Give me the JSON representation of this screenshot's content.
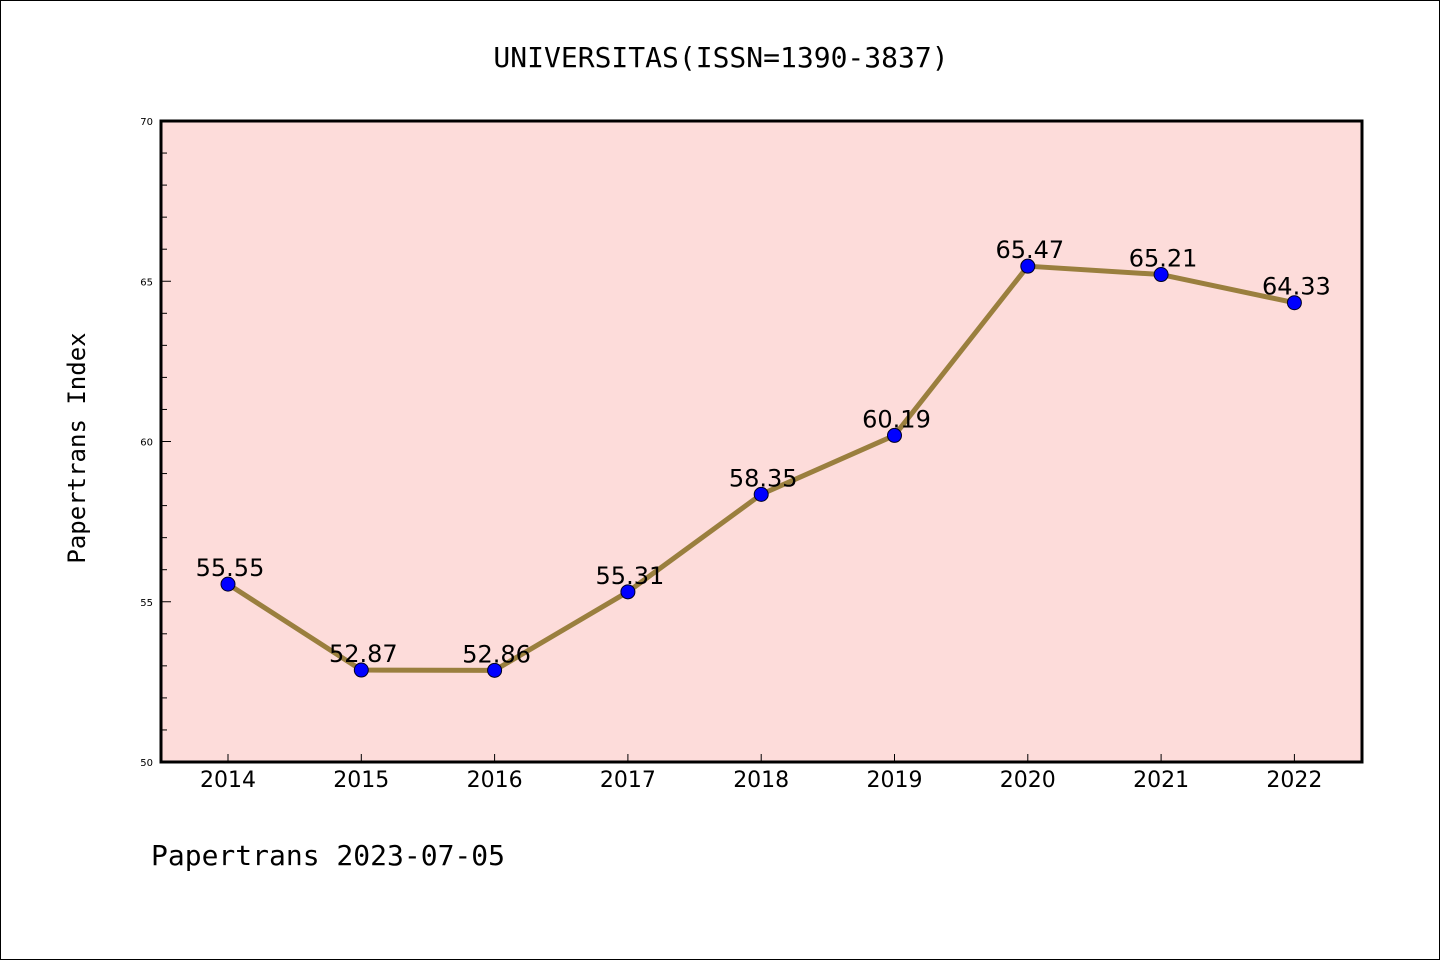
{
  "chart_data": {
    "type": "line",
    "title": "UNIVERSITAS(ISSN=1390-3837)",
    "ylabel": "Papertrans Index",
    "xlabel": "",
    "categories": [
      "2014",
      "2015",
      "2016",
      "2017",
      "2018",
      "2019",
      "2020",
      "2021",
      "2022"
    ],
    "values": [
      55.55,
      52.87,
      52.86,
      55.31,
      58.35,
      60.19,
      65.47,
      65.21,
      64.33
    ],
    "data_labels": [
      "55.55",
      "52.87",
      "52.86",
      "55.31",
      "58.35",
      "60.19",
      "65.47",
      "65.21",
      "64.33"
    ],
    "ylim": [
      50,
      70
    ],
    "yticks": [
      50,
      55,
      60,
      65,
      70
    ],
    "grid": false,
    "plot_background": "#FDDCDA",
    "line_color": "#9A7F3E",
    "marker_color": "#0000FF"
  },
  "footer": "Papertrans 2023-07-05"
}
